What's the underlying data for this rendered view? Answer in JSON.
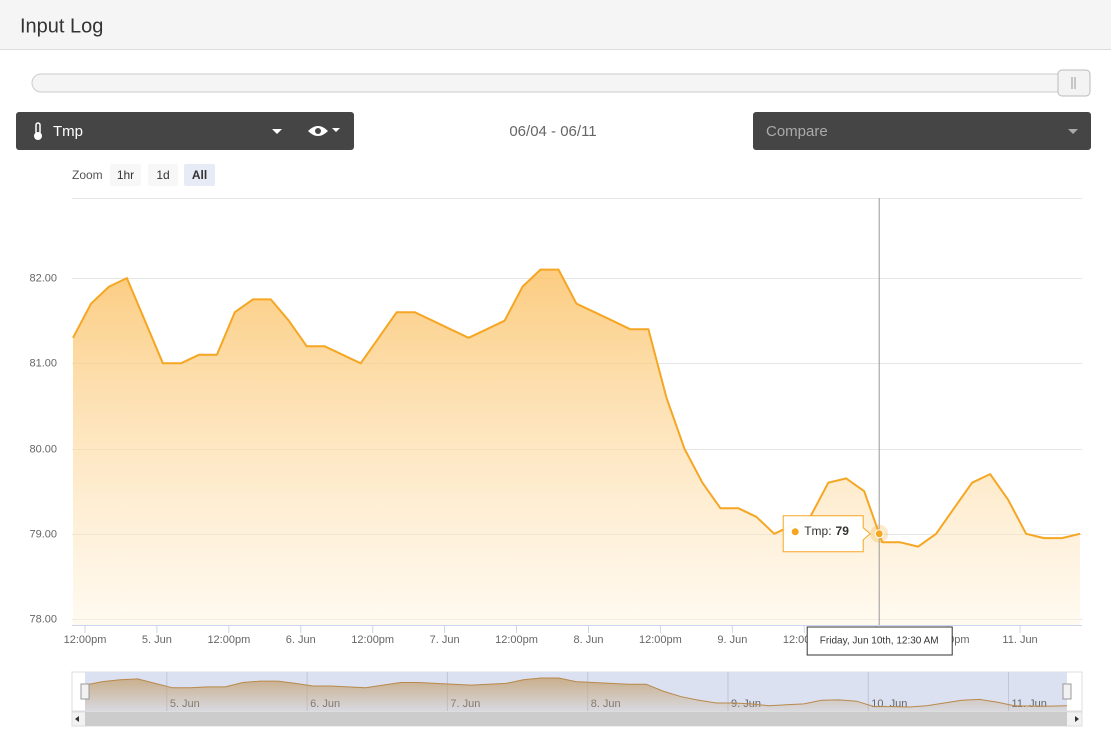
{
  "header": {
    "title": "Input Log"
  },
  "controls": {
    "sensor": "Tmp",
    "date_range": "06/04 - 06/11",
    "compare": "Compare",
    "zoom_label": "Zoom",
    "zoom_buttons": [
      "1hr",
      "1d",
      "All"
    ],
    "zoom_selected": 2
  },
  "chart_data": {
    "type": "area",
    "x": [
      "06-04 10:00",
      "06-04 13:00",
      "06-04 16:00",
      "06-04 19:00",
      "06-04 22:00",
      "06-05 01:00",
      "06-05 04:00",
      "06-05 07:00",
      "06-05 10:00",
      "06-05 13:00",
      "06-05 16:00",
      "06-05 19:00",
      "06-05 22:00",
      "06-06 01:00",
      "06-06 04:00",
      "06-06 07:00",
      "06-06 10:00",
      "06-06 13:00",
      "06-06 16:00",
      "06-06 19:00",
      "06-06 22:00",
      "06-07 01:00",
      "06-07 04:00",
      "06-07 07:00",
      "06-07 10:00",
      "06-07 13:00",
      "06-07 16:00",
      "06-07 19:00",
      "06-07 22:00",
      "06-08 01:00",
      "06-08 04:00",
      "06-08 07:00",
      "06-08 10:00",
      "06-08 13:00",
      "06-08 16:00",
      "06-08 19:00",
      "06-08 22:00",
      "06-09 01:00",
      "06-09 04:00",
      "06-09 07:00",
      "06-09 10:00",
      "06-09 13:00",
      "06-09 16:00",
      "06-09 19:00",
      "06-09 22:00",
      "06-10 01:00",
      "06-10 04:00",
      "06-10 07:00",
      "06-10 10:00",
      "06-10 13:00",
      "06-10 16:00",
      "06-10 19:00",
      "06-10 22:00",
      "06-11 01:00",
      "06-11 04:00",
      "06-11 07:00",
      "06-11 10:00"
    ],
    "series": [
      {
        "name": "Tmp",
        "color": "#f5a623",
        "values": [
          81.3,
          81.7,
          81.9,
          82.0,
          81.5,
          81.0,
          81.0,
          81.1,
          81.1,
          81.6,
          81.75,
          81.75,
          81.5,
          81.2,
          81.2,
          81.1,
          81.0,
          81.3,
          81.6,
          81.6,
          81.5,
          81.4,
          81.3,
          81.4,
          81.5,
          81.9,
          82.1,
          82.1,
          81.7,
          81.6,
          81.5,
          81.4,
          81.4,
          80.6,
          80.0,
          79.6,
          79.3,
          79.3,
          79.2,
          79.0,
          79.1,
          79.2,
          79.6,
          79.65,
          79.5,
          78.9,
          78.9,
          78.85,
          79.0,
          79.3,
          79.6,
          79.7,
          79.4,
          79.0,
          78.95,
          78.95,
          79.0
        ]
      }
    ],
    "xlim": [
      "06-04 09:50",
      "06-11 10:20"
    ],
    "xticks": [
      {
        "value": "06-04 12:00",
        "label": "12:00pm"
      },
      {
        "value": "06-05 00:00",
        "label": "5. Jun"
      },
      {
        "value": "06-05 12:00",
        "label": "12:00pm"
      },
      {
        "value": "06-06 00:00",
        "label": "6. Jun"
      },
      {
        "value": "06-06 12:00",
        "label": "12:00pm"
      },
      {
        "value": "06-07 00:00",
        "label": "7. Jun"
      },
      {
        "value": "06-07 12:00",
        "label": "12:00pm"
      },
      {
        "value": "06-08 00:00",
        "label": "8. Jun"
      },
      {
        "value": "06-08 12:00",
        "label": "12:00pm"
      },
      {
        "value": "06-09 00:00",
        "label": "9. Jun"
      },
      {
        "value": "06-09 12:00",
        "label": "12:00pm"
      },
      {
        "value": "06-10 00:00",
        "label": "10. Jun"
      },
      {
        "value": "06-10 12:00",
        "label": "12:00pm"
      },
      {
        "value": "06-11 00:00",
        "label": "11. Jun"
      }
    ],
    "ylim": [
      77.93,
      82.94
    ],
    "yticks": [
      {
        "value": 78,
        "label": "78.00"
      },
      {
        "value": 79,
        "label": "79.00"
      },
      {
        "value": 80,
        "label": "80.00"
      },
      {
        "value": 81,
        "label": "81.00"
      },
      {
        "value": 82,
        "label": "82.00"
      }
    ],
    "grid": true,
    "tooltip": {
      "x": "06-10 00:30",
      "x_label": "Friday, Jun 10th, 12:30 AM",
      "label": "Tmp:",
      "value": 79
    },
    "navigator": {
      "xticks": [
        {
          "value": "06-05 00:00",
          "label": "5. Jun"
        },
        {
          "value": "06-06 00:00",
          "label": "6. Jun"
        },
        {
          "value": "06-07 00:00",
          "label": "7. Jun"
        },
        {
          "value": "06-08 00:00",
          "label": "8. Jun"
        },
        {
          "value": "06-09 00:00",
          "label": "9. Jun"
        },
        {
          "value": "06-10 00:00",
          "label": "10. Jun"
        },
        {
          "value": "06-11 00:00",
          "label": "11. Jun"
        }
      ]
    }
  }
}
